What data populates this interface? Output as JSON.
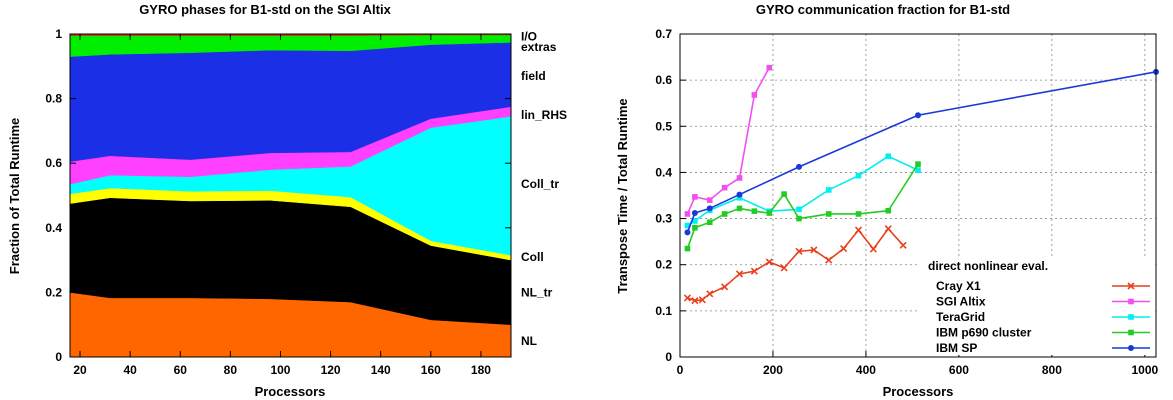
{
  "chart_data": [
    {
      "type": "area",
      "title": "GYRO phases for B1-std on the SGI Altix",
      "xlabel": "Processors",
      "ylabel": "Fraction of Total Runtime",
      "xlim": [
        16,
        192
      ],
      "ylim": [
        0,
        1
      ],
      "xticks": [
        "20",
        "40",
        "60",
        "80",
        "100",
        "120",
        "140",
        "160",
        "180"
      ],
      "yticks": [
        "0",
        "0.2",
        "0.4",
        "0.6",
        "0.8",
        "1"
      ],
      "x": [
        16,
        32,
        64,
        96,
        128,
        160,
        192
      ],
      "series": [
        {
          "name": "NL",
          "color": "#ff6600",
          "values": [
            0.2,
            0.183,
            0.183,
            0.18,
            0.17,
            0.115,
            0.1
          ]
        },
        {
          "name": "NL_tr",
          "color": "#000000",
          "values": [
            0.275,
            0.31,
            0.3,
            0.305,
            0.295,
            0.23,
            0.2
          ]
        },
        {
          "name": "Coll",
          "color": "#ffff00",
          "values": [
            0.03,
            0.03,
            0.03,
            0.03,
            0.03,
            0.015,
            0.015
          ]
        },
        {
          "name": "Coll_tr",
          "color": "#00ffff",
          "values": [
            0.03,
            0.04,
            0.045,
            0.065,
            0.095,
            0.35,
            0.43
          ]
        },
        {
          "name": "lin_RHS",
          "color": "#ff40ff",
          "values": [
            0.07,
            0.06,
            0.053,
            0.052,
            0.045,
            0.028,
            0.03
          ]
        },
        {
          "name": "field",
          "color": "#1a2fe6",
          "values": [
            0.325,
            0.314,
            0.331,
            0.318,
            0.313,
            0.229,
            0.199
          ]
        },
        {
          "name": "extras",
          "color": "#00ee00",
          "values": [
            0.065,
            0.058,
            0.053,
            0.045,
            0.047,
            0.03,
            0.023
          ]
        },
        {
          "name": "I/O",
          "color": "#c8321e",
          "values": [
            0.005,
            0.005,
            0.005,
            0.005,
            0.005,
            0.003,
            0.003
          ]
        }
      ],
      "label_y": {
        "I/O": 0.992,
        "extras": 0.96,
        "field": 0.87,
        "lin_RHS": 0.75,
        "Coll_tr": 0.535,
        "Coll": 0.31,
        "NL_tr": 0.2,
        "NL": 0.05
      }
    },
    {
      "type": "line",
      "title": "GYRO communication fraction for B1-std",
      "xlabel": "Processors",
      "ylabel": "Transpose Time / Total Runtime",
      "xlim": [
        0,
        1024
      ],
      "ylim": [
        0,
        0.7
      ],
      "xticks": [
        "0",
        "200",
        "400",
        "600",
        "800",
        "1000"
      ],
      "yticks": [
        "0",
        "0.1",
        "0.2",
        "0.3",
        "0.4",
        "0.5",
        "0.6",
        "0.7"
      ],
      "legend_title": "direct nonlinear eval.",
      "legend_position": "bottom-right",
      "grid": true,
      "series": [
        {
          "name": "Cray X1",
          "color": "#e8401c",
          "marker": "x",
          "x": [
            16,
            32,
            48,
            64,
            96,
            128,
            160,
            192,
            224,
            256,
            288,
            320,
            352,
            384,
            416,
            448,
            480
          ],
          "y": [
            0.128,
            0.122,
            0.124,
            0.137,
            0.152,
            0.18,
            0.186,
            0.206,
            0.193,
            0.229,
            0.232,
            0.21,
            0.235,
            0.275,
            0.234,
            0.278,
            0.242
          ]
        },
        {
          "name": "SGI Altix",
          "color": "#f050f0",
          "marker": "square",
          "x": [
            16,
            32,
            64,
            96,
            128,
            160,
            192
          ],
          "y": [
            0.31,
            0.347,
            0.34,
            0.367,
            0.388,
            0.568,
            0.627
          ]
        },
        {
          "name": "TeraGrid",
          "color": "#00f0f0",
          "marker": "square",
          "x": [
            16,
            32,
            64,
            128,
            192,
            256,
            320,
            384,
            448,
            512
          ],
          "y": [
            0.285,
            0.295,
            0.318,
            0.345,
            0.316,
            0.32,
            0.362,
            0.393,
            0.435,
            0.405
          ]
        },
        {
          "name": "IBM p690 cluster",
          "color": "#22cc22",
          "marker": "square",
          "x": [
            16,
            32,
            64,
            96,
            128,
            160,
            192,
            224,
            256,
            320,
            384,
            448,
            512
          ],
          "y": [
            0.235,
            0.28,
            0.292,
            0.31,
            0.322,
            0.316,
            0.312,
            0.353,
            0.3,
            0.31,
            0.31,
            0.317,
            0.418
          ]
        },
        {
          "name": "IBM SP",
          "color": "#1a3ad8",
          "marker": "circle",
          "x": [
            16,
            32,
            64,
            128,
            256,
            512,
            1024
          ],
          "y": [
            0.27,
            0.312,
            0.322,
            0.352,
            0.412,
            0.524,
            0.618
          ]
        }
      ]
    }
  ]
}
